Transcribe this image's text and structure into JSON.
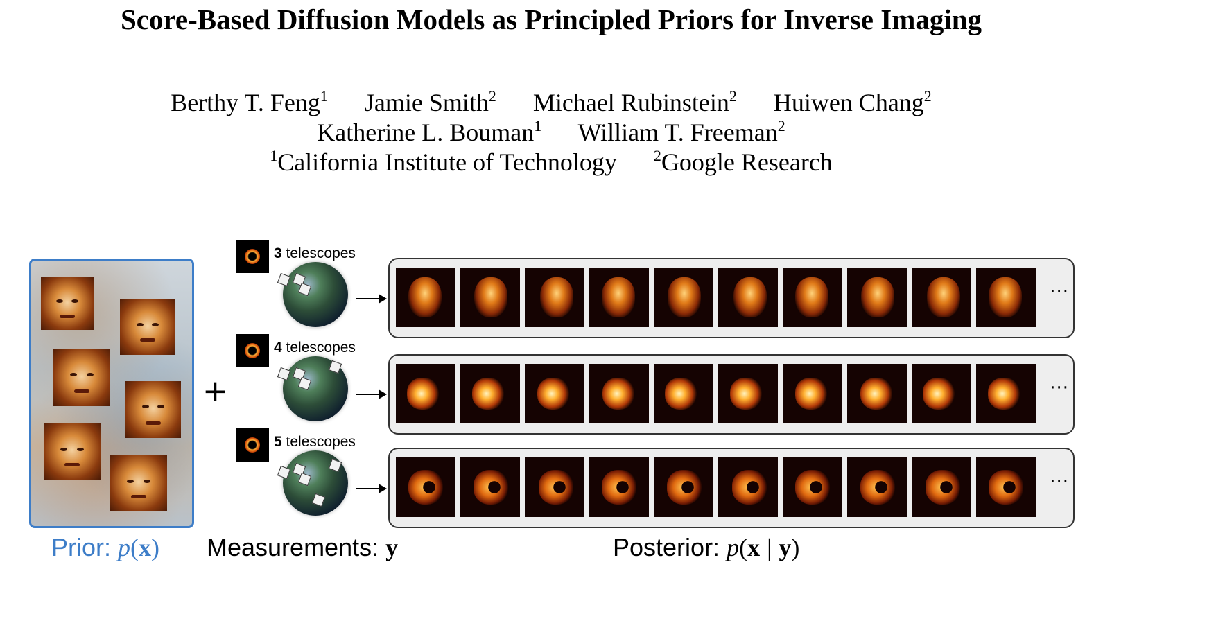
{
  "title": "Score-Based Diffusion Models as Principled Priors for Inverse Imaging",
  "authors_line1": [
    {
      "name": "Berthy T. Feng",
      "aff": "1"
    },
    {
      "name": "Jamie Smith",
      "aff": "2"
    },
    {
      "name": "Michael Rubinstein",
      "aff": "2"
    },
    {
      "name": "Huiwen Chang",
      "aff": "2"
    }
  ],
  "authors_line2": [
    {
      "name": "Katherine L. Bouman",
      "aff": "1"
    },
    {
      "name": "William T. Freeman",
      "aff": "2"
    }
  ],
  "affiliations": [
    {
      "num": "1",
      "name": "California Institute of Technology"
    },
    {
      "num": "2",
      "name": "Google Research"
    }
  ],
  "figure": {
    "plus": "+",
    "measurements": [
      {
        "count": "3",
        "unit": "telescopes"
      },
      {
        "count": "4",
        "unit": "telescopes"
      },
      {
        "count": "5",
        "unit": "telescopes"
      }
    ],
    "ellipsis": "···",
    "captions": {
      "prior_label": "Prior:",
      "prior_math_p": "p",
      "prior_math_open": "(",
      "prior_math_x": "x",
      "prior_math_close": ")",
      "measurements_label": "Measurements:",
      "measurements_math": "y",
      "posterior_label": "Posterior:",
      "posterior_math_p": "p",
      "posterior_math_open": "(",
      "posterior_math_x": "x",
      "posterior_math_bar": "|",
      "posterior_math_y": "y",
      "posterior_math_close": ")"
    },
    "colors": {
      "prior_accent": "#3d7dc8",
      "border": "#333333",
      "row_bg": "#eeeeee"
    }
  }
}
